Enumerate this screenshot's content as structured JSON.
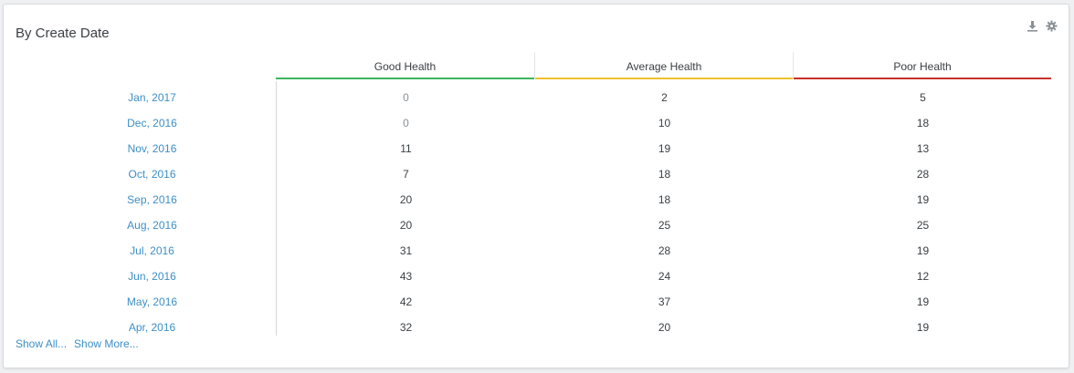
{
  "widget": {
    "title": "By Create Date"
  },
  "toolbar": {
    "icons": [
      "download-icon",
      "gear-icon"
    ]
  },
  "columns": [
    {
      "label": "Good Health",
      "color": "#3cb55e"
    },
    {
      "label": "Average Health",
      "color": "#f0c12c"
    },
    {
      "label": "Poor Health",
      "color": "#c9302c"
    }
  ],
  "rows": [
    {
      "label": "Jan, 2017",
      "values": [
        "0",
        "2",
        "5"
      ]
    },
    {
      "label": "Dec, 2016",
      "values": [
        "0",
        "10",
        "18"
      ]
    },
    {
      "label": "Nov, 2016",
      "values": [
        "11",
        "19",
        "13"
      ]
    },
    {
      "label": "Oct, 2016",
      "values": [
        "7",
        "18",
        "28"
      ]
    },
    {
      "label": "Sep, 2016",
      "values": [
        "20",
        "18",
        "19"
      ]
    },
    {
      "label": "Aug, 2016",
      "values": [
        "20",
        "25",
        "25"
      ]
    },
    {
      "label": "Jul, 2016",
      "values": [
        "31",
        "28",
        "19"
      ]
    },
    {
      "label": "Jun, 2016",
      "values": [
        "43",
        "24",
        "12"
      ]
    },
    {
      "label": "May, 2016",
      "values": [
        "42",
        "37",
        "19"
      ]
    },
    {
      "label": "Apr, 2016",
      "values": [
        "32",
        "20",
        "19"
      ]
    }
  ],
  "footer": {
    "show_all": "Show All...",
    "show_more": "Show More..."
  }
}
